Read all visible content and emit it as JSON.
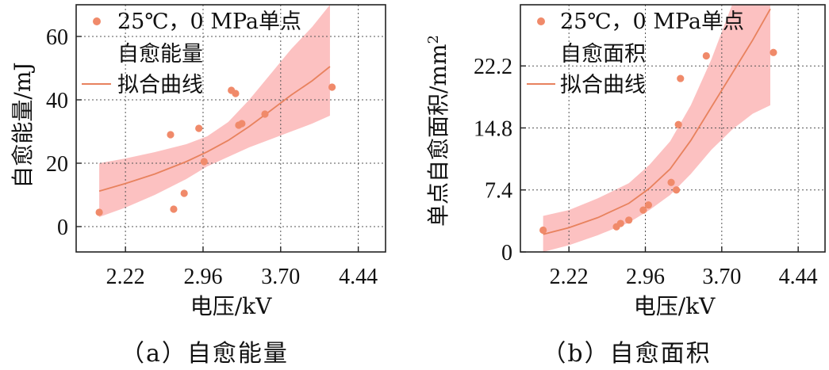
{
  "colors": {
    "marker": "#f08a6a",
    "fit_line": "#e8825e",
    "band": "#fbb6b6",
    "grid": "#555555",
    "axis": "#222222"
  },
  "chart_data": [
    {
      "type": "scatter",
      "id": "a",
      "caption": "（a）自愈能量",
      "xlabel": "电压/kV",
      "ylabel": "自愈能量/mJ",
      "xlim": [
        1.75,
        4.7
      ],
      "ylim": [
        -8,
        70
      ],
      "xticks": [
        2.22,
        2.96,
        3.7,
        4.44
      ],
      "xtick_labels": [
        "2.22",
        "2.96",
        "3.70",
        "4.44"
      ],
      "yticks": [
        0,
        20,
        40,
        60
      ],
      "ytick_labels": [
        "0",
        "20",
        "40",
        "60"
      ],
      "legend": {
        "marker_label": "25℃，0 MPa单点",
        "marker_label2": "自愈能量",
        "line_label": "拟合曲线"
      },
      "points": [
        [
          1.97,
          4.5
        ],
        [
          2.65,
          29
        ],
        [
          2.68,
          5.5
        ],
        [
          2.78,
          10.5
        ],
        [
          2.92,
          31
        ],
        [
          2.97,
          20.5
        ],
        [
          3.23,
          43
        ],
        [
          3.27,
          42
        ],
        [
          3.3,
          32
        ],
        [
          3.33,
          32.5
        ],
        [
          3.55,
          35.5
        ],
        [
          4.19,
          44
        ]
      ],
      "fit": [
        [
          1.97,
          11.2
        ],
        [
          2.22,
          13.6
        ],
        [
          2.5,
          16.6
        ],
        [
          2.8,
          20.5
        ],
        [
          3.0,
          23.6
        ],
        [
          3.2,
          27.2
        ],
        [
          3.4,
          31.6
        ],
        [
          3.6,
          36.5
        ],
        [
          3.8,
          41.5
        ],
        [
          4.0,
          46.0
        ],
        [
          4.17,
          50.5
        ]
      ],
      "band_upper": [
        [
          1.97,
          20
        ],
        [
          2.22,
          21.5
        ],
        [
          2.5,
          23.5
        ],
        [
          2.8,
          26
        ],
        [
          3.0,
          28.5
        ],
        [
          3.2,
          33
        ],
        [
          3.4,
          40
        ],
        [
          3.6,
          48
        ],
        [
          3.8,
          56
        ],
        [
          4.0,
          63
        ],
        [
          4.17,
          70
        ]
      ],
      "band_lower": [
        [
          1.97,
          3
        ],
        [
          2.22,
          6
        ],
        [
          2.5,
          10
        ],
        [
          2.8,
          15
        ],
        [
          3.0,
          19
        ],
        [
          3.2,
          22
        ],
        [
          3.4,
          25
        ],
        [
          3.6,
          27.5
        ],
        [
          3.8,
          30
        ],
        [
          4.0,
          32.5
        ],
        [
          4.17,
          35
        ]
      ]
    },
    {
      "type": "scatter",
      "id": "b",
      "caption": "（b）自愈面积",
      "xlabel": "电压/kV",
      "ylabel": "单点自愈面积/mm²",
      "ylabel_main": "单点自愈面积/mm",
      "ylabel_sup": "2",
      "xlim": [
        1.75,
        4.7
      ],
      "ylim": [
        0,
        29.5
      ],
      "xticks": [
        2.22,
        2.96,
        3.7,
        4.44
      ],
      "xtick_labels": [
        "2.22",
        "2.96",
        "3.70",
        "4.44"
      ],
      "yticks": [
        0,
        7.4,
        14.8,
        22.2
      ],
      "ytick_labels": [
        "0",
        "7.4",
        "14.8",
        "22.2"
      ],
      "legend": {
        "marker_label": "25℃，0 MPa单点",
        "marker_label2": "自愈面积",
        "line_label": "拟合曲线"
      },
      "points": [
        [
          1.97,
          2.6
        ],
        [
          2.68,
          3.0
        ],
        [
          2.72,
          3.4
        ],
        [
          2.8,
          3.8
        ],
        [
          2.94,
          5.0
        ],
        [
          2.99,
          5.6
        ],
        [
          3.21,
          8.3
        ],
        [
          3.26,
          7.4
        ],
        [
          3.28,
          15.2
        ],
        [
          3.3,
          20.7
        ],
        [
          3.55,
          23.4
        ],
        [
          4.2,
          23.8
        ]
      ],
      "fit": [
        [
          1.97,
          2.1
        ],
        [
          2.22,
          2.9
        ],
        [
          2.5,
          4.1
        ],
        [
          2.8,
          5.8
        ],
        [
          3.0,
          7.6
        ],
        [
          3.2,
          9.9
        ],
        [
          3.4,
          13.3
        ],
        [
          3.6,
          17.3
        ],
        [
          3.8,
          21.3
        ],
        [
          4.0,
          25.3
        ],
        [
          4.17,
          29.0
        ]
      ],
      "band_upper": [
        [
          1.97,
          4.3
        ],
        [
          2.22,
          5.0
        ],
        [
          2.5,
          6.4
        ],
        [
          2.8,
          8.2
        ],
        [
          3.0,
          10.4
        ],
        [
          3.2,
          13.2
        ],
        [
          3.4,
          17.5
        ],
        [
          3.6,
          23.0
        ],
        [
          3.8,
          29.5
        ],
        [
          4.17,
          29.5
        ]
      ],
      "band_lower": [
        [
          1.97,
          0
        ],
        [
          2.22,
          0.8
        ],
        [
          2.5,
          2.0
        ],
        [
          2.8,
          3.5
        ],
        [
          3.0,
          5.0
        ],
        [
          3.2,
          6.8
        ],
        [
          3.4,
          9.3
        ],
        [
          3.6,
          12.2
        ],
        [
          3.8,
          14.6
        ],
        [
          4.0,
          16.5
        ],
        [
          4.17,
          17.5
        ]
      ]
    }
  ]
}
